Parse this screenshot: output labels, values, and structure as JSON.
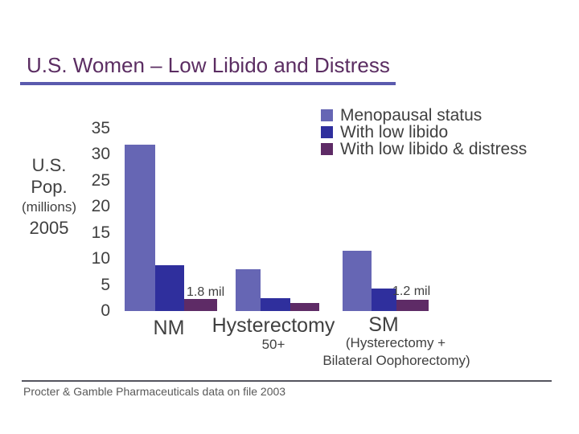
{
  "slide": {
    "title": "U.S. Women – Low Libido and Distress",
    "footer": "Procter & Gamble Pharmaceuticals data on file 2003",
    "colors": {
      "title": "#5b2d62",
      "title_underline": "#5a5aae",
      "body_text": "#404040",
      "footer_text": "#595959",
      "background": "#ffffff"
    }
  },
  "chart_data": {
    "type": "bar",
    "title": "",
    "xlabel": "",
    "ylabel": "U.S. Pop. (millions) 2005",
    "y_axis_label_lines": [
      "U.S.",
      "Pop.",
      "(millions)",
      "2005"
    ],
    "y_ticks": [
      35,
      30,
      25,
      20,
      15,
      10,
      5,
      0
    ],
    "ylim": [
      0,
      35
    ],
    "grid": false,
    "legend_position": "top-right",
    "categories": [
      "NM",
      "Hysterectomy 50+",
      "SM (Hysterectomy + Bilateral Oophorectomy)"
    ],
    "category_labels": [
      {
        "main": "NM"
      },
      {
        "main": "Hysterectomy",
        "sub1": "50+"
      },
      {
        "main": "SM",
        "sub1": "(Hysterectomy +",
        "sub2": "Bilateral Oophorectomy)"
      }
    ],
    "series": [
      {
        "name": "Menopausal status",
        "color": "#6666b4",
        "values": [
          31.8,
          8.0,
          11.6
        ]
      },
      {
        "name": "With low libido",
        "color": "#2f2f9d",
        "values": [
          8.8,
          2.5,
          4.3
        ]
      },
      {
        "name": "With low libido & distress",
        "color": "#5e2b66",
        "values": [
          2.3,
          1.6,
          2.1
        ]
      }
    ],
    "annotations": [
      {
        "text": "1.8 mil",
        "category": "NM",
        "series": "With low libido & distress"
      },
      {
        "text": "1.2 mil",
        "category": "SM",
        "series": "With low libido & distress"
      }
    ]
  }
}
